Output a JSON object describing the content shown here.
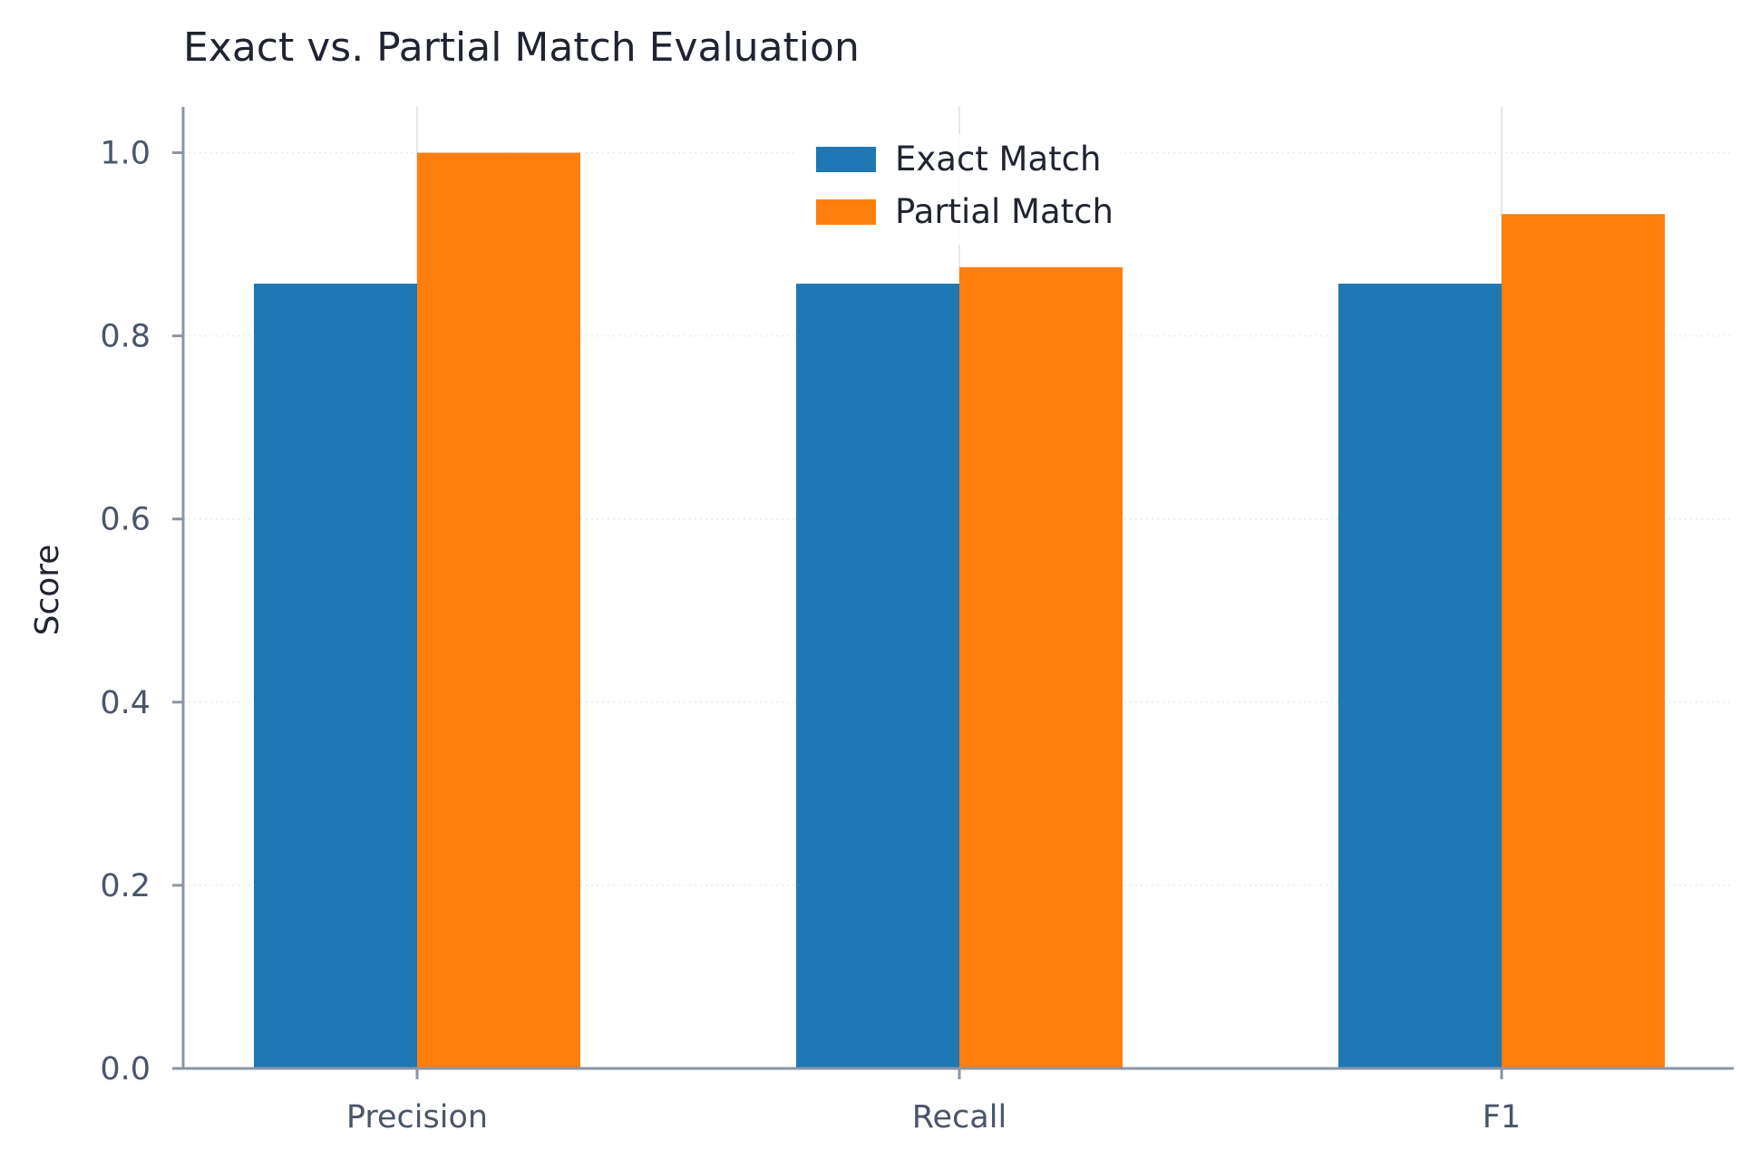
{
  "chart_data": {
    "type": "bar",
    "title": "Exact vs. Partial Match Evaluation",
    "xlabel": "",
    "ylabel": "Score",
    "categories": [
      "Precision",
      "Recall",
      "F1"
    ],
    "series": [
      {
        "name": "Exact Match",
        "values": [
          0.857,
          0.857,
          0.857
        ],
        "color": "#1f77b4"
      },
      {
        "name": "Partial Match",
        "values": [
          1.0,
          0.875,
          0.933
        ],
        "color": "#ff7f0e"
      }
    ],
    "ylim": [
      0,
      1.05
    ],
    "yticks": [
      "0.0",
      "0.2",
      "0.4",
      "0.6",
      "0.8",
      "1.0"
    ],
    "grid": true,
    "legend": "top-center"
  }
}
